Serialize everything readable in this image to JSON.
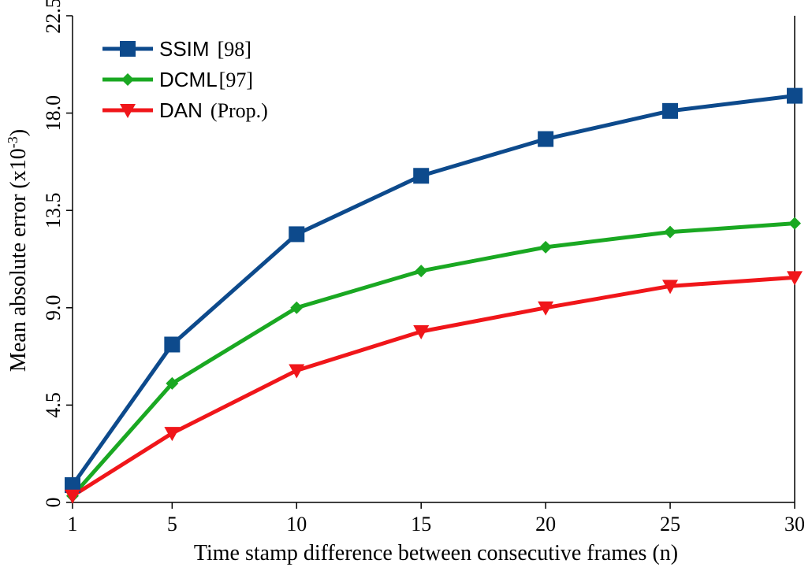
{
  "chart_data": {
    "type": "line",
    "x": [
      1,
      5,
      10,
      15,
      20,
      25,
      30
    ],
    "x_ticks": [
      "1",
      "5",
      "10",
      "15",
      "20",
      "25",
      "30"
    ],
    "y_ticks": [
      "0",
      "4.5",
      "9.0",
      "13.5",
      "18.0",
      "22.5"
    ],
    "xlabel": "Time stamp difference between consecutive frames (n)",
    "ylabel_main": "Mean absolute error (x10",
    "ylabel_sup": "-3",
    "ylabel_end": ")",
    "ylim": [
      0,
      22.5
    ],
    "xlim": [
      1,
      30
    ],
    "grid": false,
    "legend_position": "top-left",
    "series": [
      {
        "name": "SSIM",
        "ref": "[98]",
        "color": "#0d4a8c",
        "marker": "square",
        "values": [
          0.8,
          7.3,
          12.4,
          15.1,
          16.8,
          18.1,
          18.8
        ]
      },
      {
        "name": "DCML",
        "ref": "[97]",
        "color": "#1aa822",
        "marker": "diamond",
        "values": [
          0.3,
          5.5,
          9.0,
          10.7,
          11.8,
          12.5,
          12.9
        ]
      },
      {
        "name": "DAN",
        "ref": "(Prop.)",
        "color": "#f0161a",
        "marker": "triangle-down",
        "values": [
          0.3,
          3.2,
          6.1,
          7.9,
          9.0,
          10.0,
          10.4
        ]
      }
    ]
  }
}
